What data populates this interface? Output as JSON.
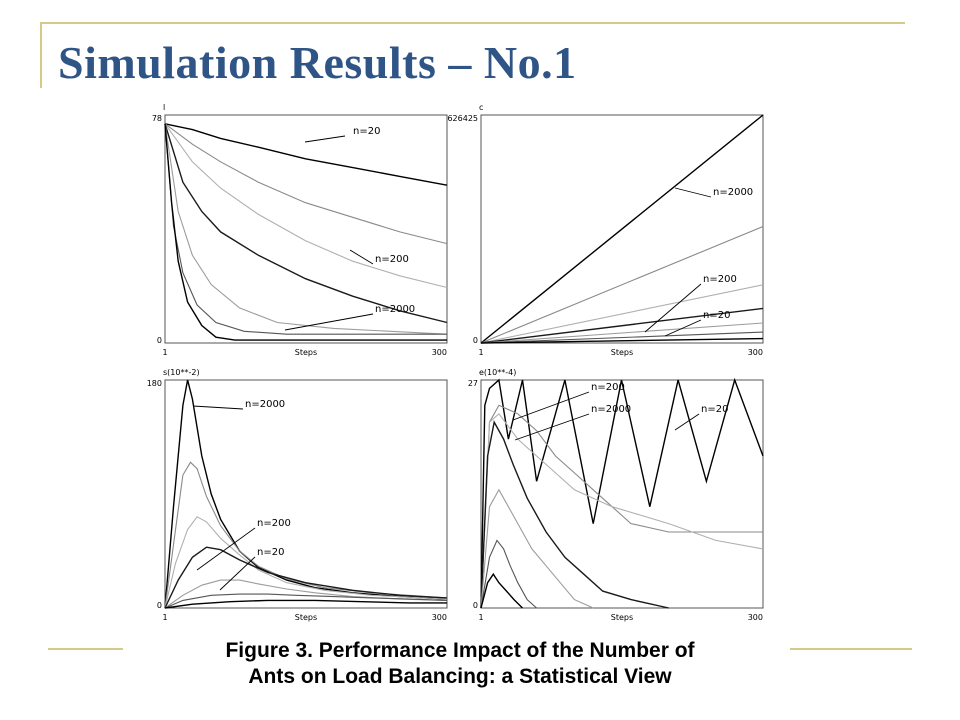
{
  "slide": {
    "title": "Simulation Results – No.1",
    "caption_line1": "Figure 3. Performance Impact of the Number of",
    "caption_line2": "Ants on Load Balancing: a Statistical View",
    "accent_color": "#d6c98a",
    "title_color": "#2f5486"
  },
  "chart_data": [
    {
      "type": "line",
      "ylabel": "l",
      "xlabel": "Steps",
      "x_ticks": [
        "1",
        "300"
      ],
      "y_ticks": [
        "0",
        "78"
      ],
      "xlim": [
        1,
        300
      ],
      "ylim": [
        0,
        78
      ],
      "annotations": [
        "n=20",
        "n=200",
        "n=2000"
      ],
      "series": [
        {
          "name": "n=20",
          "x": [
            1,
            30,
            60,
            100,
            150,
            200,
            250,
            300
          ],
          "y": [
            75,
            73,
            70,
            67,
            63,
            60,
            57,
            54
          ]
        },
        {
          "x": [
            1,
            30,
            60,
            100,
            150,
            200,
            250,
            300
          ],
          "y": [
            75,
            68,
            62,
            55,
            48,
            43,
            38,
            34
          ]
        },
        {
          "x": [
            1,
            30,
            60,
            100,
            150,
            200,
            250,
            300
          ],
          "y": [
            75,
            62,
            53,
            44,
            35,
            28,
            23,
            19
          ]
        },
        {
          "name": "n=200",
          "x": [
            1,
            20,
            40,
            60,
            100,
            150,
            200,
            250,
            300
          ],
          "y": [
            75,
            55,
            45,
            38,
            30,
            22,
            16,
            11,
            7
          ]
        },
        {
          "x": [
            1,
            15,
            30,
            50,
            80,
            120,
            180,
            240,
            300
          ],
          "y": [
            75,
            45,
            30,
            20,
            12,
            7,
            5,
            4,
            3
          ]
        },
        {
          "x": [
            1,
            10,
            20,
            35,
            55,
            85,
            130,
            200,
            300
          ],
          "y": [
            75,
            40,
            24,
            13,
            7,
            4,
            3,
            3,
            3
          ]
        },
        {
          "name": "n=2000",
          "x": [
            1,
            8,
            15,
            25,
            40,
            55,
            75,
            100,
            300
          ],
          "y": [
            75,
            48,
            28,
            14,
            6,
            2,
            1,
            1,
            1
          ]
        }
      ]
    },
    {
      "type": "line",
      "ylabel": "c",
      "xlabel": "Steps",
      "x_ticks": [
        "1",
        "300"
      ],
      "y_ticks": [
        "0",
        "626425"
      ],
      "xlim": [
        1,
        300
      ],
      "ylim": [
        0,
        626425
      ],
      "annotations": [
        "n=2000",
        "n=200",
        "n=20"
      ],
      "series": [
        {
          "name": "n=2000",
          "x": [
            1,
            300
          ],
          "y": [
            0,
            626425
          ]
        },
        {
          "x": [
            1,
            300
          ],
          "y": [
            0,
            320000
          ]
        },
        {
          "x": [
            1,
            300
          ],
          "y": [
            0,
            160000
          ]
        },
        {
          "name": "n=200",
          "x": [
            1,
            300
          ],
          "y": [
            0,
            95000
          ]
        },
        {
          "x": [
            1,
            300
          ],
          "y": [
            0,
            55000
          ]
        },
        {
          "name": "n=20",
          "x": [
            1,
            300
          ],
          "y": [
            0,
            30000
          ]
        },
        {
          "x": [
            1,
            300
          ],
          "y": [
            0,
            12000
          ]
        }
      ]
    },
    {
      "type": "line",
      "ylabel": "s(10**-2)",
      "xlabel": "Steps",
      "x_ticks": [
        "1",
        "300"
      ],
      "y_ticks": [
        "0",
        "180"
      ],
      "xlim": [
        1,
        300
      ],
      "ylim": [
        0,
        180
      ],
      "annotations": [
        "n=2000",
        "n=200",
        "n=20"
      ],
      "series": [
        {
          "name": "n=2000",
          "x": [
            1,
            10,
            20,
            25,
            30,
            40,
            50,
            60,
            80,
            100,
            130,
            160,
            200,
            250,
            300
          ],
          "y": [
            0,
            80,
            160,
            180,
            165,
            120,
            90,
            70,
            45,
            32,
            22,
            16,
            12,
            9,
            7
          ]
        },
        {
          "x": [
            1,
            10,
            20,
            28,
            35,
            45,
            60,
            80,
            100,
            130,
            170,
            220,
            300
          ],
          "y": [
            0,
            50,
            105,
            115,
            110,
            88,
            65,
            45,
            33,
            23,
            16,
            12,
            8
          ]
        },
        {
          "name": "n=200",
          "x": [
            1,
            12,
            25,
            35,
            45,
            60,
            80,
            100,
            130,
            170,
            220,
            300
          ],
          "y": [
            0,
            35,
            62,
            72,
            68,
            55,
            42,
            30,
            20,
            14,
            10,
            7
          ]
        },
        {
          "x": [
            1,
            15,
            30,
            45,
            60,
            80,
            110,
            150,
            200,
            250,
            300
          ],
          "y": [
            0,
            22,
            40,
            48,
            46,
            38,
            28,
            20,
            14,
            10,
            8
          ]
        },
        {
          "name": "n=20",
          "x": [
            1,
            20,
            40,
            60,
            80,
            100,
            130,
            160,
            200,
            250,
            300
          ],
          "y": [
            0,
            10,
            18,
            22,
            22,
            19,
            15,
            12,
            9,
            7,
            6
          ]
        },
        {
          "x": [
            1,
            20,
            50,
            80,
            110,
            140,
            180,
            220,
            260,
            300
          ],
          "y": [
            0,
            6,
            10,
            11,
            11,
            10,
            9,
            8,
            7,
            6
          ]
        },
        {
          "x": [
            1,
            30,
            70,
            110,
            160,
            210,
            260,
            300
          ],
          "y": [
            0,
            3,
            5,
            6,
            6,
            5,
            4,
            4
          ]
        }
      ]
    },
    {
      "type": "line",
      "ylabel": "e(10**-4)",
      "xlabel": "Steps",
      "x_ticks": [
        "1",
        "300"
      ],
      "y_ticks": [
        "0",
        "27"
      ],
      "xlim": [
        1,
        300
      ],
      "ylim": [
        0,
        27
      ],
      "annotations": [
        "n=200",
        "n=2000",
        "n=20"
      ],
      "series": [
        {
          "name": "n=20",
          "x": [
            1,
            5,
            10,
            20,
            30,
            45,
            60,
            90,
            120,
            150,
            180,
            210,
            240,
            270,
            300
          ],
          "y": [
            0,
            24,
            26,
            27,
            20,
            27,
            15,
            27,
            10,
            27,
            12,
            27,
            15,
            27,
            18
          ]
        },
        {
          "name": "n=200",
          "x": [
            1,
            10,
            20,
            40,
            60,
            80,
            100,
            120,
            140,
            160,
            200,
            250,
            300
          ],
          "y": [
            0,
            22,
            24,
            23,
            21,
            18,
            16,
            14,
            12,
            10,
            9,
            9,
            9
          ]
        },
        {
          "x": [
            1,
            10,
            20,
            40,
            60,
            80,
            100,
            120,
            140,
            170,
            200,
            250,
            300
          ],
          "y": [
            0,
            22,
            23,
            20,
            18,
            16,
            14,
            13,
            12,
            11,
            10,
            8,
            7
          ]
        },
        {
          "name": "n=2000",
          "x": [
            1,
            8,
            15,
            25,
            35,
            50,
            70,
            90,
            110,
            130,
            160,
            200
          ],
          "y": [
            0,
            18,
            22,
            20,
            17,
            13,
            9,
            6,
            4,
            2,
            1,
            0
          ]
        },
        {
          "x": [
            1,
            10,
            20,
            30,
            40,
            55,
            70,
            85,
            100,
            120
          ],
          "y": [
            0,
            12,
            14,
            12,
            10,
            7,
            5,
            3,
            1,
            0
          ]
        },
        {
          "x": [
            1,
            10,
            18,
            25,
            32,
            40,
            50,
            60
          ],
          "y": [
            0,
            6,
            8,
            7,
            5,
            3,
            1,
            0
          ]
        },
        {
          "x": [
            1,
            8,
            14,
            20,
            28,
            36,
            45
          ],
          "y": [
            0,
            3,
            4,
            3,
            2,
            1,
            0
          ]
        }
      ]
    }
  ]
}
